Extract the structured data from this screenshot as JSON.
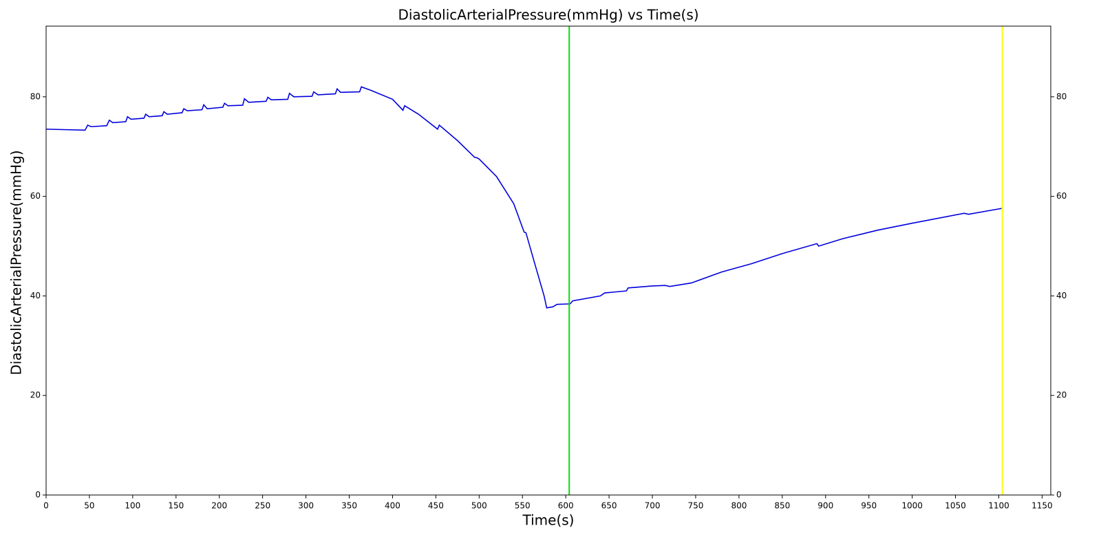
{
  "chart_data": {
    "type": "line",
    "title": "DiastolicArterialPressure(mmHg) vs Time(s)",
    "x_label": "Time(s)",
    "y_label": "DiastolicArterialPressure(mmHg)",
    "xlim": [
      0,
      1160
    ],
    "ylim": [
      0,
      94.2
    ],
    "xticks": [
      0,
      50,
      100,
      150,
      200,
      250,
      300,
      350,
      400,
      450,
      500,
      550,
      600,
      650,
      700,
      750,
      800,
      850,
      900,
      950,
      1000,
      1050,
      1100,
      1150
    ],
    "yticks": [
      0,
      20,
      40,
      60,
      80
    ],
    "y2ticks": [
      0,
      20,
      40,
      60,
      80
    ],
    "vlines": [
      {
        "x": 604,
        "color": "#00e000"
      },
      {
        "x": 1104,
        "color": "#ffff00"
      }
    ],
    "series": [
      {
        "color": "#0000dd",
        "x": [
          0,
          45,
          48,
          52,
          70,
          73,
          77,
          92,
          94,
          98,
          113,
          115,
          119,
          134,
          136,
          140,
          157,
          159,
          163,
          180,
          182,
          186,
          204,
          206,
          210,
          227,
          229,
          234,
          254,
          256,
          260,
          279,
          281,
          286,
          307,
          309,
          314,
          334,
          336,
          340,
          362,
          364,
          375,
          400,
          412,
          414,
          430,
          452,
          454,
          475,
          495,
          497,
          500,
          520,
          540,
          552,
          554,
          565,
          575,
          578,
          585,
          590,
          605,
          608,
          640,
          645,
          670,
          672,
          700,
          715,
          720,
          745,
          780,
          815,
          850,
          890,
          892,
          920,
          960,
          1000,
          1060,
          1065,
          1104
        ],
        "values": [
          73.5,
          73.3,
          74.3,
          74.0,
          74.2,
          75.3,
          74.8,
          75.0,
          76.0,
          75.5,
          75.7,
          76.5,
          76.0,
          76.2,
          77.0,
          76.5,
          76.8,
          77.6,
          77.2,
          77.4,
          78.4,
          77.6,
          77.9,
          78.7,
          78.2,
          78.3,
          79.6,
          78.9,
          79.1,
          79.9,
          79.4,
          79.5,
          80.7,
          80.0,
          80.1,
          81.0,
          80.4,
          80.6,
          81.6,
          80.9,
          81.0,
          82.0,
          81.3,
          79.5,
          77.3,
          78.2,
          76.5,
          73.5,
          74.3,
          71.2,
          67.8,
          67.8,
          67.5,
          64.0,
          58.5,
          52.8,
          52.7,
          46.0,
          40.0,
          37.6,
          37.8,
          38.3,
          38.4,
          39.0,
          40.0,
          40.6,
          41.0,
          41.6,
          42.0,
          42.1,
          41.9,
          42.6,
          44.8,
          46.5,
          48.5,
          50.5,
          50.0,
          51.5,
          53.2,
          54.6,
          56.6,
          56.4,
          57.6
        ]
      }
    ]
  }
}
